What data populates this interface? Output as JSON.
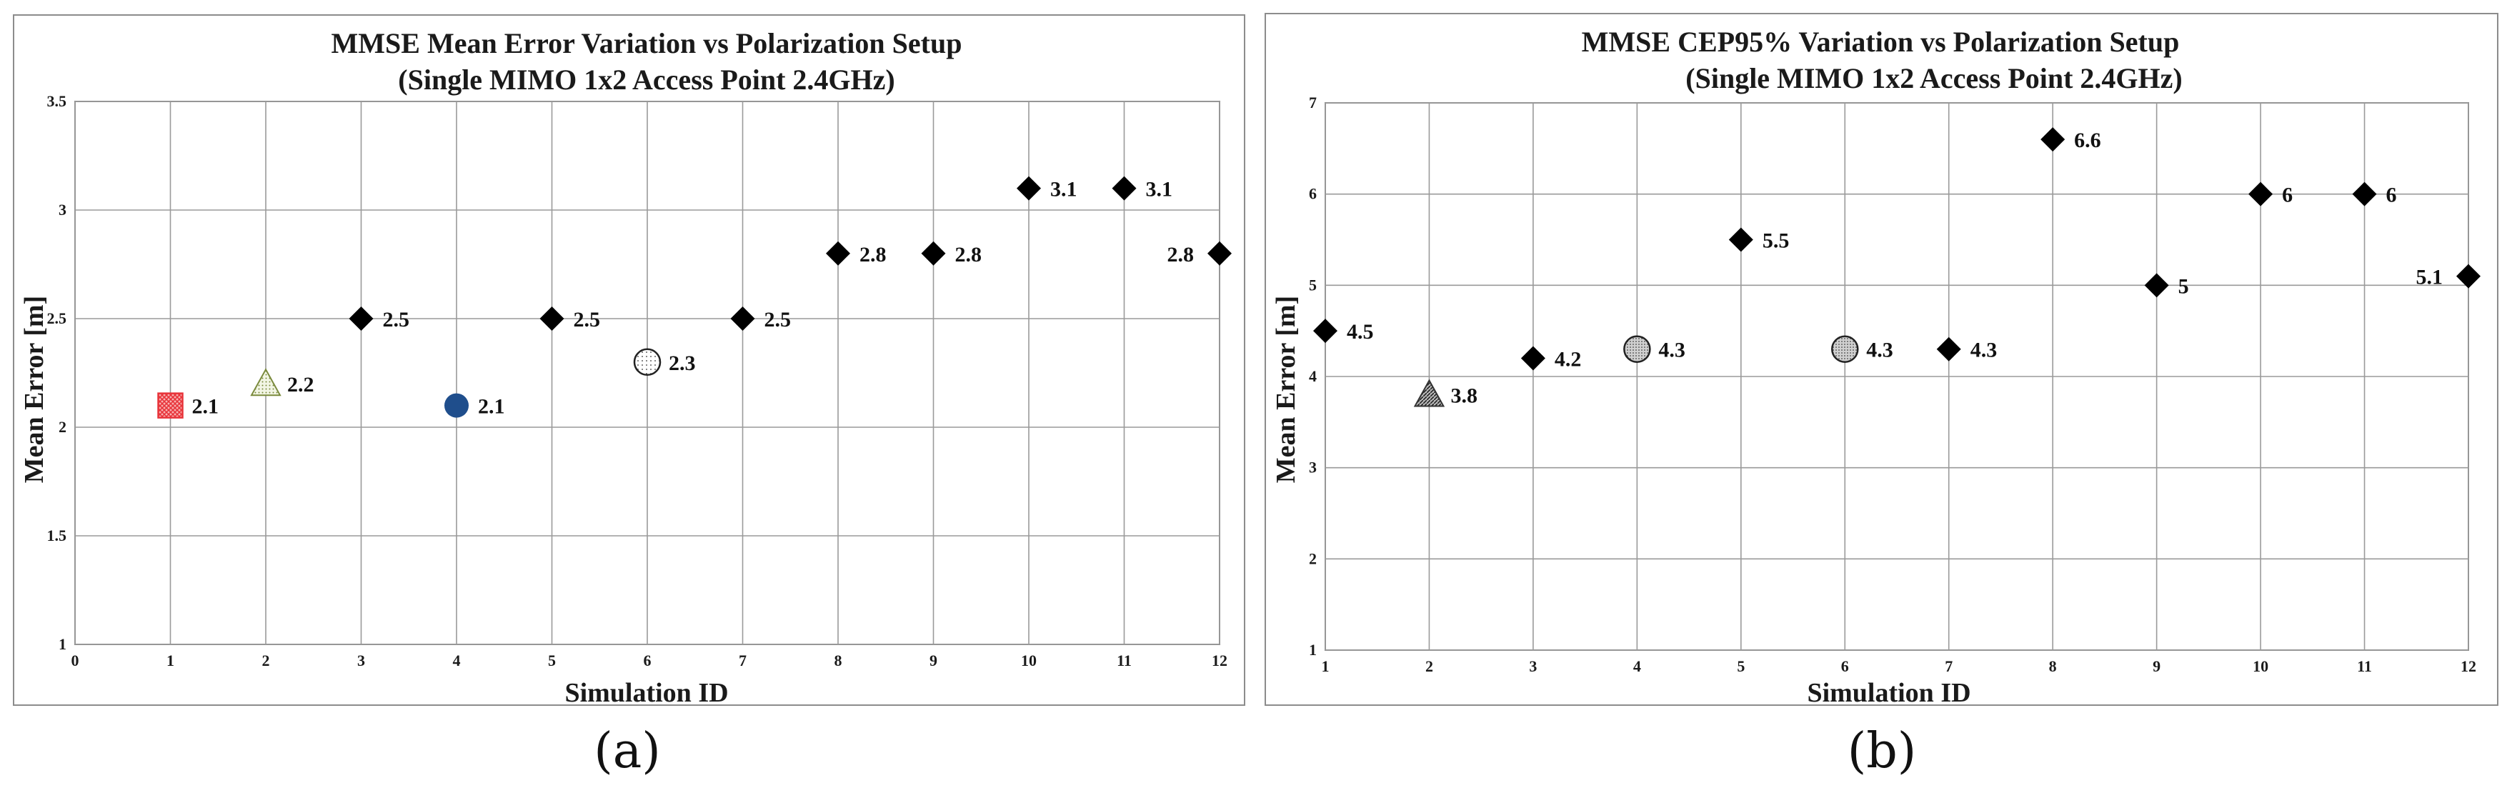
{
  "chart_data": [
    {
      "type": "scatter",
      "title_line1": "MMSE Mean Error Variation vs Polarization Setup",
      "title_line2": "(Single MIMO 1x2 Access Point 2.4GHz)",
      "xlabel": "Simulation ID",
      "ylabel": "Mean Error [m]",
      "xlim": [
        0,
        12
      ],
      "ylim": [
        1,
        3.5
      ],
      "xticks": [
        "0",
        "1",
        "2",
        "3",
        "4",
        "5",
        "6",
        "7",
        "8",
        "9",
        "10",
        "11",
        "12"
      ],
      "yticks": [
        "1",
        "1.5",
        "2",
        "2.5",
        "3",
        "3.5"
      ],
      "grid": true,
      "points": [
        {
          "x": 1,
          "y": 2.1,
          "label": "2.1",
          "marker": "hatched-square",
          "color": "#e8343a"
        },
        {
          "x": 2,
          "y": 2.2,
          "label": "2.2",
          "marker": "dotted-triangle",
          "color": "#7a8a3c"
        },
        {
          "x": 3,
          "y": 2.5,
          "label": "2.5",
          "marker": "diamond",
          "color": "#000000"
        },
        {
          "x": 4,
          "y": 2.1,
          "label": "2.1",
          "marker": "circle",
          "color": "#1f4e8c"
        },
        {
          "x": 5,
          "y": 2.5,
          "label": "2.5",
          "marker": "diamond",
          "color": "#000000"
        },
        {
          "x": 6,
          "y": 2.3,
          "label": "2.3",
          "marker": "dotted-circle",
          "color": "#000000"
        },
        {
          "x": 7,
          "y": 2.5,
          "label": "2.5",
          "marker": "diamond",
          "color": "#000000"
        },
        {
          "x": 8,
          "y": 2.8,
          "label": "2.8",
          "marker": "diamond",
          "color": "#000000"
        },
        {
          "x": 9,
          "y": 2.8,
          "label": "2.8",
          "marker": "diamond",
          "color": "#000000"
        },
        {
          "x": 10,
          "y": 3.1,
          "label": "3.1",
          "marker": "diamond",
          "color": "#000000"
        },
        {
          "x": 11,
          "y": 3.1,
          "label": "3.1",
          "marker": "diamond",
          "color": "#000000"
        },
        {
          "x": 12,
          "y": 2.8,
          "label": "2.8",
          "marker": "diamond",
          "color": "#000000",
          "label_side": "left"
        }
      ]
    },
    {
      "type": "scatter",
      "title_line1": "MMSE CEP95% Variation vs Polarization Setup",
      "title_line2": "(Single MIMO 1x2 Access Point 2.4GHz)",
      "xlabel": "Simulation ID",
      "ylabel": "Mean Error [m]",
      "xlim": [
        1,
        12
      ],
      "ylim": [
        1,
        7
      ],
      "xticks": [
        "1",
        "2",
        "3",
        "4",
        "5",
        "6",
        "7",
        "8",
        "9",
        "10",
        "11",
        "12"
      ],
      "yticks": [
        "1",
        "2",
        "3",
        "4",
        "5",
        "6",
        "7"
      ],
      "grid": true,
      "points": [
        {
          "x": 1,
          "y": 4.5,
          "label": "4.5",
          "marker": "diamond",
          "color": "#000000"
        },
        {
          "x": 2,
          "y": 3.8,
          "label": "3.8",
          "marker": "hatched-triangle",
          "color": "#333333"
        },
        {
          "x": 3,
          "y": 4.2,
          "label": "4.2",
          "marker": "diamond",
          "color": "#000000"
        },
        {
          "x": 4,
          "y": 4.3,
          "label": "4.3",
          "marker": "dotted-circle",
          "color": "#555555"
        },
        {
          "x": 5,
          "y": 5.5,
          "label": "5.5",
          "marker": "diamond",
          "color": "#000000"
        },
        {
          "x": 6,
          "y": 4.3,
          "label": "4.3",
          "marker": "dotted-circle",
          "color": "#555555"
        },
        {
          "x": 7,
          "y": 4.3,
          "label": "4.3",
          "marker": "diamond",
          "color": "#000000"
        },
        {
          "x": 8,
          "y": 6.6,
          "label": "6.6",
          "marker": "diamond",
          "color": "#000000"
        },
        {
          "x": 9,
          "y": 5,
          "label": "5",
          "marker": "diamond",
          "color": "#000000"
        },
        {
          "x": 10,
          "y": 6,
          "label": "6",
          "marker": "diamond",
          "color": "#000000"
        },
        {
          "x": 11,
          "y": 6,
          "label": "6",
          "marker": "diamond",
          "color": "#000000"
        },
        {
          "x": 12,
          "y": 5.1,
          "label": "5.1",
          "marker": "diamond",
          "color": "#000000",
          "label_side": "left"
        }
      ]
    }
  ],
  "captions": {
    "a": "(a)",
    "b": "(b)"
  }
}
